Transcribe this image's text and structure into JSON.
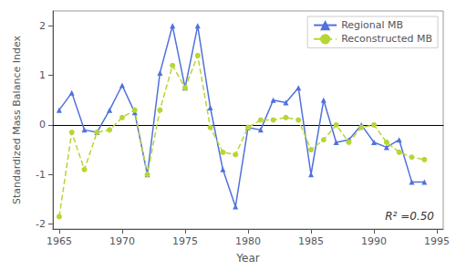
{
  "chart_data": {
    "type": "line",
    "x": [
      1965,
      1966,
      1967,
      1968,
      1969,
      1970,
      1971,
      1972,
      1973,
      1974,
      1975,
      1976,
      1977,
      1978,
      1979,
      1980,
      1981,
      1982,
      1983,
      1984,
      1985,
      1986,
      1987,
      1988,
      1989,
      1990,
      1991,
      1992,
      1993,
      1994
    ],
    "series": [
      {
        "name": "Regional MB",
        "marker": "triangle",
        "line_style": "solid",
        "values": [
          0.3,
          0.65,
          -0.1,
          -0.15,
          0.3,
          0.8,
          0.25,
          -1.0,
          1.05,
          2.0,
          0.75,
          2.0,
          0.35,
          -0.9,
          -1.65,
          -0.05,
          -0.1,
          0.5,
          0.45,
          0.75,
          -1.0,
          0.5,
          -0.35,
          -0.3,
          0.0,
          -0.35,
          -0.45,
          -0.3,
          -1.15,
          -1.15
        ]
      },
      {
        "name": "Reconstructed MB",
        "marker": "circle",
        "line_style": "dashed",
        "values": [
          -1.85,
          -0.15,
          -0.9,
          -0.15,
          -0.1,
          0.15,
          0.3,
          -1.0,
          0.3,
          1.2,
          0.75,
          1.4,
          -0.05,
          -0.55,
          -0.6,
          -0.05,
          0.1,
          0.1,
          0.15,
          0.1,
          -0.5,
          -0.3,
          0.0,
          -0.35,
          -0.05,
          0.0,
          -0.35,
          -0.55,
          -0.65,
          -0.7
        ]
      }
    ],
    "xlabel": "Year",
    "ylabel": "Standardized Mass Balance Index",
    "xlim": [
      1964.5,
      1995.5
    ],
    "xticks": [
      1965,
      1970,
      1975,
      1980,
      1985,
      1990,
      1995
    ],
    "ylim": [
      -2.1,
      2.3
    ],
    "yticks": [
      -2,
      -1,
      0,
      1,
      2
    ],
    "grid": false,
    "legend": "upper right",
    "annotations": [
      "R² =0.50"
    ]
  }
}
